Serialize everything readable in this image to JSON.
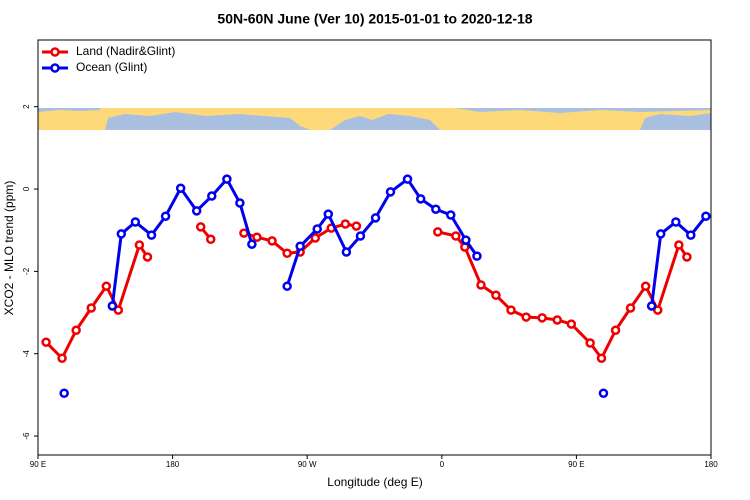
{
  "chart_data": {
    "type": "line",
    "title": "50N-60N June (Ver 10)   2015-01-01 to 2020-12-18",
    "x_label": "Longitude (deg E)",
    "y_label": "XCO2 - MLO trend (ppm)",
    "xlim": [
      90,
      540
    ],
    "ylim": [
      -6.46,
      3.62
    ],
    "xticks": [
      {
        "value": 90,
        "label": "90 E"
      },
      180,
      {
        "value": 270,
        "label": "90 W"
      },
      {
        "value": 360,
        "label": "0"
      },
      {
        "value": 450,
        "label": "90 E"
      },
      {
        "value": 540,
        "label": "180"
      }
    ],
    "yticks": [
      2,
      0,
      -2,
      -4,
      -6
    ],
    "legend": "top-left",
    "series": [
      {
        "name": "Land (Nadir&Glint)",
        "color": "#ee0000",
        "x": [
          95.4,
          106.1,
          115.5,
          125.6,
          135.7,
          143.7,
          157.8,
          163.2,
          null,
          198.8,
          205.5,
          null,
          227.7,
          236.4,
          246.5,
          256.6,
          265.3,
          275.4,
          286.1,
          295.5,
          302.9,
          null,
          357.3,
          369.4,
          375.4,
          386.2,
          396.2,
          406.3,
          416.4,
          427.1,
          437.2,
          446.6,
          459.2,
          466.8,
          476.2,
          486.2,
          496.3,
          504.4,
          518.5,
          523.9
        ],
        "values": [
          -3.72,
          -4.11,
          -3.43,
          -2.89,
          -2.36,
          -2.94,
          -1.36,
          -1.65,
          null,
          -0.92,
          -1.22,
          null,
          -1.07,
          -1.17,
          -1.26,
          -1.56,
          -1.53,
          -1.19,
          -0.95,
          -0.85,
          -0.9,
          null,
          -1.04,
          -1.14,
          -1.41,
          -2.33,
          -2.58,
          -2.94,
          -3.11,
          -3.13,
          -3.18,
          -3.28,
          -3.74,
          -4.11,
          -3.43,
          -2.89,
          -2.36,
          -2.94,
          -1.36,
          -1.65
        ]
      },
      {
        "name": "Ocean (Glint)",
        "color": "#0000ee",
        "x": [
          107.5,
          null,
          139.7,
          145.7,
          155.1,
          165.9,
          175.3,
          185.4,
          196.1,
          206.2,
          216.3,
          225.0,
          233.0,
          null,
          256.6,
          265.3,
          276.7,
          284.1,
          296.2,
          305.6,
          315.7,
          325.7,
          337.1,
          345.9,
          356.0,
          366.0,
          376.1,
          383.5,
          null,
          468.1,
          null,
          500.3,
          506.4,
          516.5,
          526.5,
          536.6
        ],
        "values": [
          -4.96,
          null,
          -2.84,
          -1.09,
          -0.8,
          -1.12,
          -0.66,
          0.02,
          -0.53,
          -0.17,
          0.24,
          -0.34,
          -1.34,
          null,
          -2.36,
          -1.39,
          -0.97,
          -0.61,
          -1.53,
          -1.14,
          -0.7,
          -0.07,
          0.24,
          -0.24,
          -0.49,
          -0.63,
          -1.24,
          -1.63,
          null,
          -4.96,
          null,
          -2.84,
          -1.09,
          -0.8,
          -1.12,
          -0.66
        ]
      }
    ]
  }
}
